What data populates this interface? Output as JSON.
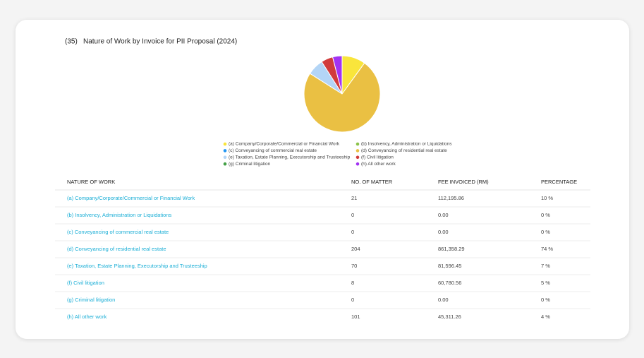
{
  "chart_data": {
    "type": "pie",
    "title_number": "(35)",
    "title": "Nature of Work by Invoice for PII Proposal (2024)",
    "categories": [
      "(a) Company/Corporate/Commercial or Financial Work",
      "(b) Insolvency, Administration or Liquidations",
      "(c) Conveyancing of commercial real estate",
      "(d) Conveyancing of residential real estate",
      "(e) Taxation, Estate Planning, Executorship and Trusteeship",
      "(f) Civil litigation",
      "(g) Criminal litigation",
      "(h) All other work"
    ],
    "values": [
      10,
      0,
      0,
      74,
      7,
      5,
      0,
      4
    ],
    "colors": [
      "#f9e53b",
      "#8bc34a",
      "#2196f3",
      "#eac043",
      "#b3d5f6",
      "#d13b3b",
      "#43a047",
      "#a233f2"
    ]
  },
  "table": {
    "headers": [
      "NATURE OF WORK",
      "NO. OF MATTER",
      "FEE INVOICED (RM)",
      "PERCENTAGE"
    ],
    "rows": [
      [
        "(a) Company/Corporate/Commercial or Financial Work",
        "21",
        "112,195.86",
        "10 %"
      ],
      [
        "(b) Insolvency, Administration or Liquidations",
        "0",
        "0.00",
        "0 %"
      ],
      [
        "(c) Conveyancing of commercial real estate",
        "0",
        "0.00",
        "0 %"
      ],
      [
        "(d) Conveyancing of residential real estate",
        "204",
        "861,358.29",
        "74 %"
      ],
      [
        "(e) Taxation, Estate Planning, Executorship and Trusteeship",
        "70",
        "81,596.45",
        "7 %"
      ],
      [
        "(f) Civil litigation",
        "8",
        "60,780.56",
        "5 %"
      ],
      [
        "(g) Criminal litigation",
        "0",
        "0.00",
        "0 %"
      ],
      [
        "(h) All other work",
        "101",
        "45,311.26",
        "4 %"
      ]
    ]
  }
}
